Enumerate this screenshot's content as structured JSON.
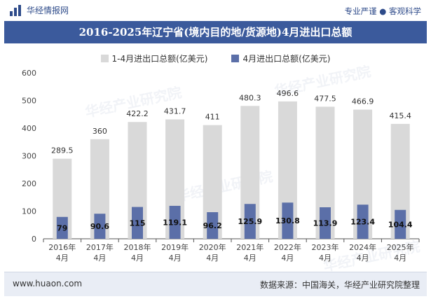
{
  "header": {
    "brand": "华经情报网",
    "slogan": "专业严谨 ● 客观科学"
  },
  "watermark": "华经产业研究院",
  "chart_data": {
    "type": "bar",
    "title": "2016-2025年辽宁省(境内目的地/货源地)4月进出口总额",
    "categories": [
      "2016年\n4月",
      "2017年\n4月",
      "2018年\n4月",
      "2019年\n4月",
      "2020年\n4月",
      "2021年\n4月",
      "2022年\n4月",
      "2023年\n4月",
      "2024年\n4月",
      "2025年\n4月"
    ],
    "series": [
      {
        "name": "1-4月进出口总额(亿美元)",
        "color": "#d9d9d9",
        "values": [
          289.5,
          360,
          422.2,
          431.7,
          411,
          480.3,
          496.6,
          477.5,
          466.9,
          415.4
        ]
      },
      {
        "name": "4月进出口总额(亿美元)",
        "color": "#5b6fa8",
        "values": [
          79,
          90.6,
          115,
          119.1,
          96.2,
          125.9,
          130.8,
          113.9,
          123.4,
          104.4
        ]
      }
    ],
    "ylim": [
      0,
      600
    ],
    "yticks": [
      0,
      100,
      200,
      300,
      400,
      500,
      600
    ],
    "xlabel": "",
    "ylabel": "",
    "grid": false,
    "legend": "top-center"
  },
  "footer": {
    "url": "www.huaon.com",
    "source": "数据来源：中国海关，华经产业研究院整理"
  }
}
